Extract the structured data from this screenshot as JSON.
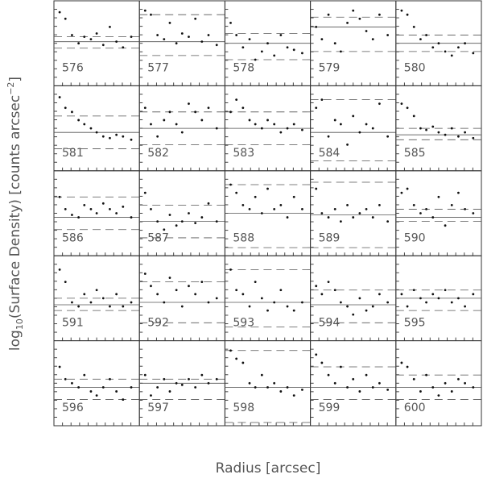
{
  "figure": {
    "type": "scatter",
    "x_label": "Radius [arcsec]",
    "y_label": {
      "prefix": "log",
      "sub": "10",
      "main": "(Surface Density) [counts arcsec",
      "sup": "−2",
      "end": "]"
    },
    "xlim": [
      0,
      100
    ],
    "ylim": [
      0,
      100
    ],
    "panels": [
      {
        "label": "576",
        "x": [
          5,
          12,
          20,
          28,
          35,
          43,
          50,
          58,
          66,
          74,
          82,
          92
        ],
        "y": [
          88,
          80,
          60,
          50,
          58,
          55,
          62,
          48,
          70,
          52,
          45,
          58
        ],
        "fit": 52,
        "bounds": [
          44,
          58
        ]
      },
      {
        "label": "577",
        "x": [
          5,
          12,
          20,
          28,
          35,
          43,
          50,
          58,
          66,
          74,
          82,
          92
        ],
        "y": [
          90,
          85,
          60,
          55,
          75,
          50,
          62,
          58,
          80,
          52,
          60,
          48
        ],
        "fit": 52,
        "bounds": [
          35,
          85
        ]
      },
      {
        "label": "578",
        "x": [
          5,
          12,
          20,
          28,
          35,
          43,
          50,
          58,
          66,
          74,
          82,
          92
        ],
        "y": [
          75,
          60,
          45,
          55,
          30,
          40,
          50,
          35,
          60,
          45,
          42,
          38
        ],
        "fit": 50,
        "bounds": [
          30,
          62
        ]
      },
      {
        "label": "579",
        "x": [
          5,
          12,
          20,
          28,
          35,
          43,
          50,
          58,
          66,
          74,
          82,
          92
        ],
        "y": [
          70,
          55,
          85,
          50,
          40,
          75,
          90,
          80,
          65,
          55,
          85,
          60
        ],
        "fit": 70,
        "bounds": [
          40,
          82
        ]
      },
      {
        "label": "580",
        "x": [
          5,
          12,
          20,
          28,
          35,
          43,
          50,
          58,
          66,
          74,
          82,
          92
        ],
        "y": [
          90,
          85,
          70,
          55,
          60,
          45,
          50,
          40,
          35,
          45,
          50,
          38
        ],
        "fit": 50,
        "bounds": [
          40,
          60
        ]
      },
      {
        "label": "581",
        "x": [
          5,
          12,
          20,
          28,
          35,
          43,
          50,
          58,
          66,
          74,
          82,
          92
        ],
        "y": [
          88,
          75,
          70,
          60,
          55,
          50,
          45,
          40,
          38,
          42,
          40,
          36
        ],
        "fit": 45,
        "bounds": [
          25,
          65
        ]
      },
      {
        "label": "582",
        "x": [
          5,
          12,
          20,
          28,
          35,
          43,
          50,
          58,
          66,
          74,
          82,
          92
        ],
        "y": [
          75,
          55,
          40,
          60,
          70,
          55,
          45,
          80,
          70,
          60,
          75,
          50
        ],
        "fit": 50,
        "bounds": [
          30,
          70
        ]
      },
      {
        "label": "583",
        "x": [
          5,
          12,
          20,
          28,
          35,
          43,
          50,
          58,
          66,
          74,
          82,
          92
        ],
        "y": [
          70,
          85,
          75,
          60,
          55,
          50,
          60,
          55,
          45,
          50,
          55,
          48
        ],
        "fit": 50,
        "bounds": [
          30,
          70
        ]
      },
      {
        "label": "584",
        "x": [
          5,
          12,
          20,
          28,
          35,
          43,
          50,
          58,
          66,
          74,
          82,
          92
        ],
        "y": [
          75,
          85,
          40,
          60,
          55,
          30,
          65,
          45,
          55,
          50,
          80,
          40
        ],
        "fit": 45,
        "bounds": [
          10,
          85
        ]
      },
      {
        "label": "585",
        "x": [
          5,
          12,
          20,
          28,
          35,
          43,
          50,
          58,
          66,
          74,
          82,
          92
        ],
        "y": [
          80,
          75,
          65,
          50,
          48,
          52,
          45,
          42,
          50,
          40,
          45,
          38
        ],
        "fit": 42,
        "bounds": [
          36,
          50
        ]
      },
      {
        "label": "586",
        "x": [
          5,
          12,
          20,
          28,
          35,
          43,
          50,
          58,
          66,
          74,
          82,
          92
        ],
        "y": [
          70,
          55,
          48,
          45,
          60,
          55,
          50,
          62,
          55,
          50,
          58,
          45
        ],
        "fit": 45,
        "bounds": [
          30,
          70
        ]
      },
      {
        "label": "587",
        "x": [
          5,
          12,
          20,
          28,
          35,
          43,
          50,
          58,
          66,
          74,
          82,
          92
        ],
        "y": [
          75,
          55,
          40,
          30,
          48,
          35,
          40,
          50,
          38,
          45,
          62,
          40
        ],
        "fit": 40,
        "bounds": [
          20,
          60
        ]
      },
      {
        "label": "588",
        "x": [
          5,
          12,
          20,
          28,
          35,
          43,
          50,
          58,
          66,
          74,
          82,
          92
        ],
        "y": [
          85,
          75,
          60,
          55,
          70,
          50,
          80,
          55,
          60,
          45,
          70,
          55
        ],
        "fit": 50,
        "bounds": [
          8,
          85
        ]
      },
      {
        "label": "589",
        "x": [
          5,
          12,
          20,
          28,
          35,
          43,
          50,
          58,
          66,
          74,
          82,
          92
        ],
        "y": [
          80,
          50,
          45,
          55,
          40,
          60,
          45,
          50,
          55,
          45,
          60,
          40
        ],
        "fit": 48,
        "bounds": [
          8,
          88
        ]
      },
      {
        "label": "590",
        "x": [
          5,
          12,
          20,
          28,
          35,
          43,
          50,
          58,
          66,
          74,
          82,
          92
        ],
        "y": [
          75,
          80,
          60,
          50,
          55,
          45,
          70,
          35,
          60,
          75,
          55,
          50
        ],
        "fit": 45,
        "bounds": [
          40,
          55
        ]
      },
      {
        "label": "591",
        "x": [
          5,
          12,
          20,
          28,
          35,
          43,
          50,
          58,
          66,
          74,
          82,
          92
        ],
        "y": [
          85,
          70,
          45,
          40,
          55,
          45,
          60,
          50,
          40,
          55,
          40,
          45
        ],
        "fit": 42,
        "bounds": [
          35,
          50
        ]
      },
      {
        "label": "592",
        "x": [
          5,
          12,
          20,
          28,
          35,
          43,
          50,
          58,
          66,
          74,
          82,
          92
        ],
        "y": [
          80,
          65,
          55,
          45,
          75,
          60,
          40,
          65,
          55,
          70,
          45,
          50
        ],
        "fit": 45,
        "bounds": [
          20,
          70
        ]
      },
      {
        "label": "593",
        "x": [
          5,
          12,
          20,
          28,
          35,
          43,
          50,
          58,
          66,
          74,
          82,
          92
        ],
        "y": [
          85,
          60,
          55,
          40,
          70,
          50,
          35,
          45,
          60,
          40,
          35,
          45
        ],
        "fit": 45,
        "bounds": [
          15,
          85
        ]
      },
      {
        "label": "594",
        "x": [
          5,
          12,
          20,
          28,
          35,
          43,
          50,
          58,
          66,
          74,
          82,
          92
        ],
        "y": [
          65,
          55,
          70,
          60,
          45,
          40,
          30,
          50,
          35,
          40,
          55,
          45
        ],
        "fit": 42,
        "bounds": [
          20,
          60
        ]
      },
      {
        "label": "595",
        "x": [
          5,
          12,
          20,
          28,
          35,
          43,
          50,
          58,
          66,
          74,
          82,
          92
        ],
        "y": [
          55,
          40,
          60,
          50,
          45,
          55,
          50,
          60,
          45,
          50,
          40,
          55
        ],
        "fit": 50,
        "bounds": [
          35,
          60
        ]
      },
      {
        "label": "596",
        "x": [
          5,
          12,
          20,
          28,
          35,
          43,
          50,
          58,
          66,
          74,
          82,
          92
        ],
        "y": [
          70,
          55,
          50,
          45,
          60,
          40,
          35,
          45,
          55,
          40,
          30,
          45
        ],
        "fit": 45,
        "bounds": [
          30,
          55
        ]
      },
      {
        "label": "597",
        "x": [
          5,
          12,
          20,
          28,
          35,
          43,
          50,
          58,
          66,
          74,
          82,
          92
        ],
        "y": [
          60,
          35,
          45,
          55,
          40,
          50,
          48,
          55,
          45,
          60,
          50,
          55
        ],
        "fit": 50,
        "bounds": [
          30,
          55
        ]
      },
      {
        "label": "598",
        "x": [
          5,
          12,
          20,
          28,
          35,
          43,
          50,
          58,
          66,
          74,
          82,
          92
        ],
        "y": [
          90,
          80,
          75,
          50,
          45,
          60,
          45,
          50,
          40,
          45,
          35,
          42
        ],
        "fit": 45,
        "bounds": [
          2,
          90
        ]
      },
      {
        "label": "599",
        "x": [
          5,
          12,
          20,
          28,
          35,
          43,
          50,
          58,
          66,
          74,
          82,
          92
        ],
        "y": [
          85,
          75,
          60,
          50,
          70,
          45,
          55,
          40,
          60,
          45,
          50,
          42
        ],
        "fit": 45,
        "bounds": [
          30,
          70
        ]
      },
      {
        "label": "600",
        "x": [
          5,
          12,
          20,
          28,
          35,
          43,
          50,
          58,
          66,
          74,
          82,
          92
        ],
        "y": [
          75,
          70,
          55,
          40,
          60,
          45,
          35,
          50,
          40,
          55,
          50,
          45
        ],
        "fit": 45,
        "bounds": [
          30,
          60
        ]
      }
    ]
  }
}
